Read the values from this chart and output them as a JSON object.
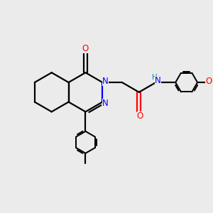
{
  "background_color": "#ebebeb",
  "bond_color": "#000000",
  "bond_lw": 1.6,
  "N_color": "#0000ff",
  "O_color": "#ff0000",
  "H_color": "#008b8b",
  "font_size": 8.5,
  "fig_size": [
    3.0,
    3.0
  ],
  "dpi": 100,
  "xlim": [
    -3.5,
    5.0
  ],
  "ylim": [
    -4.0,
    2.8
  ]
}
